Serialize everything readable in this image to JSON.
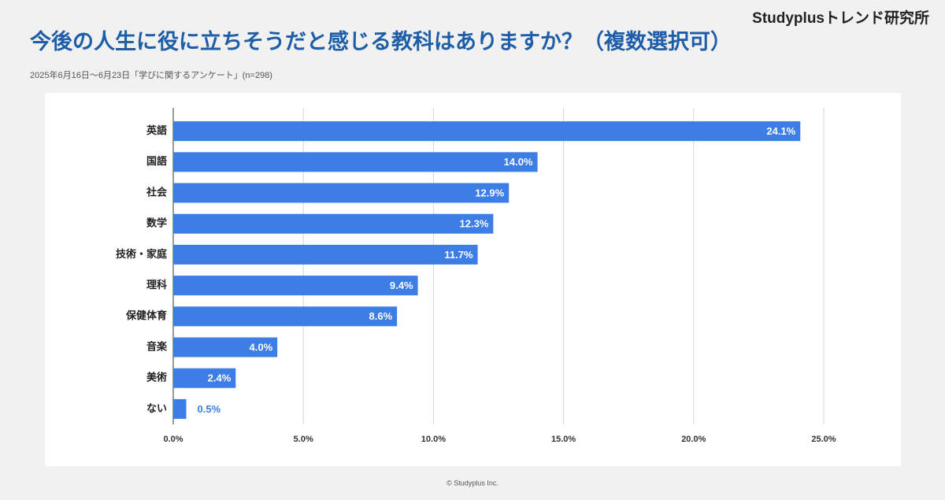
{
  "chart_data": {
    "type": "bar",
    "orientation": "horizontal",
    "brand": "Studyplusトレンド研究所",
    "title": "今後の人生に役に立ちそうだと感じる教科はありますか？（複数選択可）",
    "subtitle": "2025年6月16日～6月23日「学びに関するアンケート」(n=298)",
    "credit": "© Studyplus Inc.",
    "categories": [
      "英語",
      "国語",
      "社会",
      "数学",
      "技術・家庭",
      "理科",
      "保健体育",
      "音楽",
      "美術",
      "ない"
    ],
    "values": [
      24.1,
      14.0,
      12.9,
      12.3,
      11.7,
      9.4,
      8.6,
      4.0,
      2.4,
      0.5
    ],
    "value_labels": [
      "24.1%",
      "14.0%",
      "12.9%",
      "12.3%",
      "11.7%",
      "9.4%",
      "8.6%",
      "4.0%",
      "2.4%",
      "0.5%"
    ],
    "color": "#3d7ee6",
    "xlim": [
      0,
      25
    ],
    "xticks": [
      {
        "value": 0,
        "label": "0.0%"
      },
      {
        "value": 5,
        "label": "5.0%"
      },
      {
        "value": 10,
        "label": "10.0%"
      },
      {
        "value": 15,
        "label": "15.0%"
      },
      {
        "value": 20,
        "label": "20.0%"
      },
      {
        "value": 25,
        "label": "25.0%"
      }
    ],
    "grid": true
  }
}
